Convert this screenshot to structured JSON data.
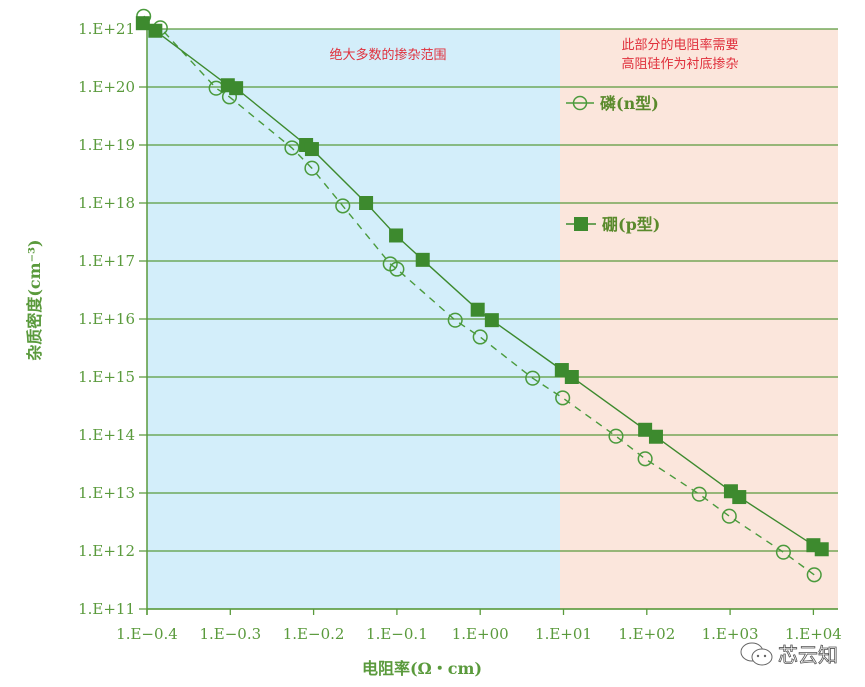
{
  "chart_data": {
    "type": "line",
    "title": "",
    "xlabel": "电阻率(Ω・cm)",
    "ylabel": "杂质密度(cm⁻³)",
    "x_scale": "log",
    "y_scale": "log",
    "x_tick_labels": [
      "1.E−0.4",
      "1.E−0.3",
      "1.E−0.2",
      "1.E−0.1",
      "1.E+00",
      "1.E+01",
      "1.E+02",
      "1.E+03",
      "1.E+04"
    ],
    "y_tick_labels": [
      "1.E+21",
      "1.E+20",
      "1.E+19",
      "1.E+18",
      "1.E+17",
      "1.E+16",
      "1.E+15",
      "1.E+14",
      "1.E+13",
      "1.E+12",
      "1.E+11"
    ],
    "ylim_exponent": [
      11,
      21
    ],
    "grid": "horizontal",
    "legend_position": "inside-right",
    "regions": [
      {
        "name": "majority-doping-range",
        "label": "绝大多数的掺杂范围",
        "x_from_tick": 0,
        "x_to_tick": 5,
        "color": "#d3eefa"
      },
      {
        "name": "high-resistivity-substrate",
        "label_lines": [
          "此部分的电阻率需要",
          "高阻硅作为衬底掺杂"
        ],
        "x_from_tick": 5,
        "x_to_tick": 8.3,
        "color": "#fbe6dc"
      }
    ],
    "series": [
      {
        "name": "磷(n型)",
        "marker": "open-circle",
        "line": "dashed",
        "color": "#4a9a3c",
        "points_tick_index_vs_exponent": [
          [
            -0.04,
            21.22
          ],
          [
            0.16,
            21.02
          ],
          [
            0.83,
            19.98
          ],
          [
            0.99,
            19.83
          ],
          [
            1.74,
            18.95
          ],
          [
            1.98,
            18.6
          ],
          [
            2.35,
            17.95
          ],
          [
            2.92,
            16.95
          ],
          [
            3.0,
            16.86
          ],
          [
            3.7,
            15.98
          ],
          [
            4.0,
            15.69
          ],
          [
            4.63,
            14.98
          ],
          [
            4.99,
            14.64
          ],
          [
            5.63,
            13.98
          ],
          [
            5.98,
            13.59
          ],
          [
            6.63,
            12.98
          ],
          [
            6.99,
            12.6
          ],
          [
            7.64,
            11.98
          ],
          [
            8.01,
            11.59
          ]
        ]
      },
      {
        "name": "硼(p型)",
        "marker": "filled-square",
        "line": "solid",
        "color": "#3d8a2e",
        "points_tick_index_vs_exponent": [
          [
            -0.05,
            21.1
          ],
          [
            0.1,
            20.97
          ],
          [
            0.97,
            20.03
          ],
          [
            1.07,
            19.98
          ],
          [
            1.91,
            19.0
          ],
          [
            1.98,
            18.93
          ],
          [
            2.63,
            18.0
          ],
          [
            2.99,
            17.44
          ],
          [
            3.31,
            17.02
          ],
          [
            3.97,
            16.16
          ],
          [
            4.14,
            15.98
          ],
          [
            4.98,
            15.12
          ],
          [
            5.1,
            15.0
          ],
          [
            5.98,
            14.09
          ],
          [
            6.11,
            13.97
          ],
          [
            7.01,
            13.03
          ],
          [
            7.11,
            12.93
          ],
          [
            8.0,
            12.1
          ],
          [
            8.1,
            12.03
          ]
        ]
      }
    ]
  },
  "annotations": {
    "left_region": "绝大多数的掺杂范围",
    "right_region_line1": "此部分的电阻率需要",
    "right_region_line2": "高阻硅作为衬底掺杂"
  },
  "legend": {
    "n_type": "磷(n型)",
    "p_type": "硼(p型)"
  },
  "axes": {
    "x_title": "电阻率(Ω・cm)",
    "y_title": "杂质密度(cm⁻³)"
  },
  "watermark": "芯云知",
  "colors": {
    "axis_green": "#5a9a3c",
    "line_green": "#4a9a3c",
    "square_green": "#3d8a2e",
    "blue_region": "#d3eefa",
    "pink_region": "#fbe6dc",
    "annotation_red": "#e0303c"
  }
}
